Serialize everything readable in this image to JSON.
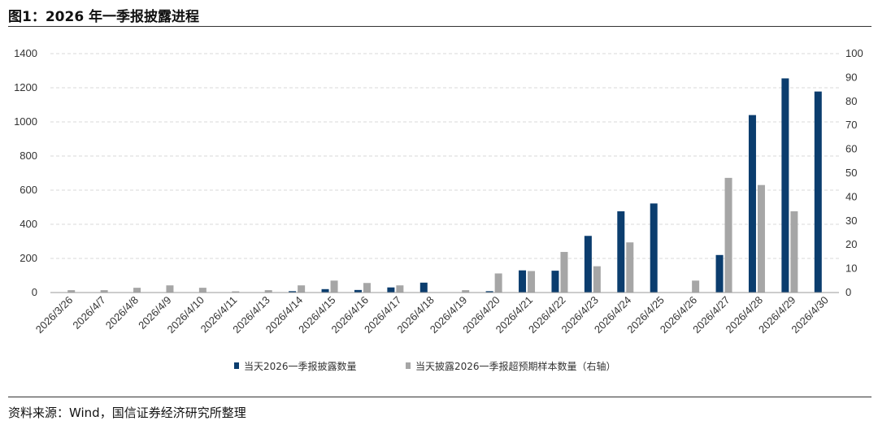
{
  "title": "图1：2026 年一季报披露进程",
  "source": "资料来源：Wind，国信证券经济研究所整理",
  "colors": {
    "series1": "#0b3d6e",
    "series2": "#a6a6a6",
    "grid": "#d9d9d9",
    "axis": "#999999"
  },
  "chart_data": {
    "type": "bar",
    "categories": [
      "2026/3/26",
      "2026/4/7",
      "2026/4/8",
      "2026/4/9",
      "2026/4/10",
      "2026/4/11",
      "2026/4/13",
      "2026/4/14",
      "2026/4/15",
      "2026/4/16",
      "2026/4/17",
      "2026/4/18",
      "2026/4/19",
      "2026/4/20",
      "2026/4/21",
      "2026/4/22",
      "2026/4/23",
      "2026/4/24",
      "2026/4/25",
      "2026/4/26",
      "2026/4/27",
      "2026/4/28",
      "2026/4/29",
      "2026/4/30"
    ],
    "series": [
      {
        "name": "当天2026一季报披露数量",
        "axis": "left",
        "values": [
          0,
          0,
          2,
          0,
          0,
          0,
          0,
          8,
          20,
          15,
          30,
          58,
          0,
          8,
          130,
          128,
          332,
          476,
          522,
          0,
          220,
          1040,
          1255,
          1178
        ]
      },
      {
        "name": "当天披露2026一季报超预期样本数量（右轴）",
        "axis": "right",
        "values": [
          1,
          1,
          2,
          3,
          2,
          0.5,
          1,
          3,
          5,
          4,
          3,
          0,
          1,
          8,
          9,
          17,
          11,
          21,
          0,
          5,
          48,
          45,
          34,
          0
        ]
      }
    ],
    "ylim_left": [
      0,
      1400
    ],
    "yticks_left": [
      0,
      200,
      400,
      600,
      800,
      1000,
      1200,
      1400
    ],
    "ylim_right": [
      0,
      100
    ],
    "yticks_right": [
      0,
      10,
      20,
      30,
      40,
      50,
      60,
      70,
      80,
      90,
      100
    ],
    "grid": true,
    "legend": "bottom-center"
  }
}
